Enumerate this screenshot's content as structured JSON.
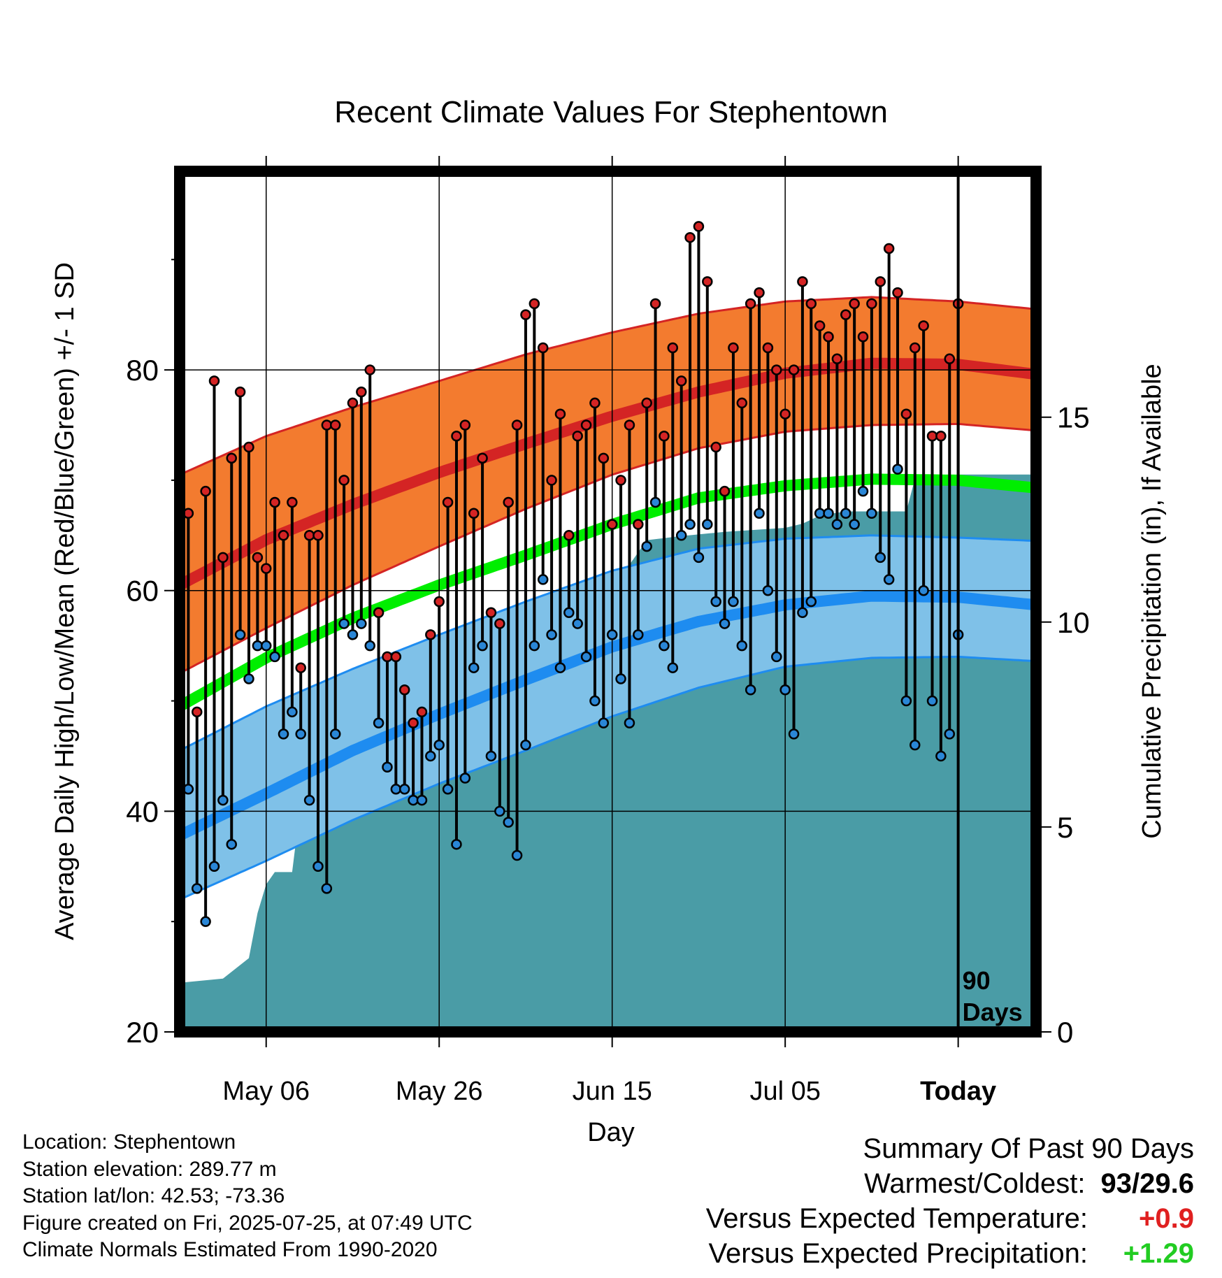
{
  "chart_data": {
    "type": "line",
    "title": "Recent Climate Values For Stephentown",
    "xlabel": "Day",
    "ylabel": "Average Daily High/Low/Mean (Red/Blue/Green) +/- 1 SD",
    "y2label": "Cumulative Precipitation (in), If Available",
    "ylim": [
      20,
      98
    ],
    "y2lim": [
      0,
      21
    ],
    "x_range_days": [
      -90,
      9
    ],
    "y_ticks": [
      "20",
      "40",
      "60",
      "80"
    ],
    "y2_ticks": [
      "0",
      "5",
      "10",
      "15"
    ],
    "x_ticks": [
      {
        "day": -80,
        "label": "May 06"
      },
      {
        "day": -60,
        "label": "May 26"
      },
      {
        "day": -40,
        "label": "Jun 15"
      },
      {
        "day": -20,
        "label": "Jul 05"
      },
      {
        "day": 0,
        "label": "Today"
      }
    ],
    "grid": true,
    "today_marker_label": "90 Days",
    "colors": {
      "high_band": "#f37b2f",
      "high_mean": "#d42424",
      "low_band": "#7fc1e8",
      "low_mean": "#1e8cf0",
      "mean": "#00ee00",
      "precip": "#4a9ca6",
      "high_dot": "#d42424",
      "low_dot": "#2a86d6"
    },
    "normals": {
      "day": [
        -90,
        -80,
        -70,
        -60,
        -50,
        -40,
        -30,
        -20,
        -10,
        0,
        9
      ],
      "high_mean": [
        60.5,
        64.6,
        67.8,
        70.7,
        73.3,
        75.8,
        78.0,
        79.7,
        80.6,
        80.5,
        79.6
      ],
      "high_sd_upper": [
        70.5,
        74.0,
        76.6,
        79.0,
        81.4,
        83.4,
        85.1,
        86.2,
        86.6,
        86.2,
        85.5
      ],
      "high_sd_lower": [
        52.5,
        56.6,
        60.5,
        64.0,
        67.4,
        70.5,
        72.9,
        74.4,
        75.0,
        75.1,
        74.5
      ],
      "mean": [
        49.5,
        53.9,
        57.5,
        60.5,
        63.2,
        66.0,
        68.4,
        69.5,
        70.1,
        70.0,
        69.3
      ],
      "low_mean": [
        37.8,
        41.6,
        45.5,
        48.8,
        51.9,
        54.9,
        57.2,
        58.7,
        59.5,
        59.4,
        58.7
      ],
      "low_sd_upper": [
        45.5,
        49.5,
        52.9,
        56.0,
        59.0,
        61.8,
        63.8,
        64.7,
        65.0,
        64.8,
        64.5
      ],
      "low_sd_lower": [
        32.0,
        35.5,
        39.2,
        42.5,
        45.5,
        48.6,
        51.2,
        53.1,
        53.9,
        54.0,
        53.6
      ]
    },
    "observed": {
      "day": [
        -89,
        -88,
        -87,
        -86,
        -85,
        -84,
        -83,
        -82,
        -81,
        -80,
        -79,
        -78,
        -77,
        -76,
        -75,
        -74,
        -73,
        -72,
        -71,
        -70,
        -69,
        -68,
        -67,
        -66,
        -65,
        -64,
        -63,
        -62,
        -61,
        -60,
        -59,
        -58,
        -57,
        -56,
        -55,
        -54,
        -53,
        -52,
        -51,
        -50,
        -49,
        -48,
        -47,
        -46,
        -45,
        -44,
        -43,
        -42,
        -41,
        -40,
        -39,
        -38,
        -37,
        -36,
        -35,
        -34,
        -33,
        -32,
        -31,
        -30,
        -29,
        -28,
        -27,
        -26,
        -25,
        -24,
        -23,
        -22,
        -21,
        -20,
        -19,
        -18,
        -17,
        -16,
        -15,
        -14,
        -13,
        -12,
        -11,
        -10,
        -9,
        -8,
        -7,
        -6,
        -5,
        -4,
        -3,
        -2,
        -1,
        0
      ],
      "high": [
        67,
        49,
        69,
        79,
        63,
        72,
        78,
        73,
        63,
        62,
        68,
        65,
        68,
        53,
        65,
        65,
        75,
        75,
        70,
        77,
        78,
        80,
        58,
        54,
        54,
        51,
        48,
        49,
        56,
        59,
        68,
        74,
        75,
        67,
        72,
        58,
        57,
        68,
        75,
        85,
        86,
        82,
        70,
        76,
        65,
        74,
        75,
        77,
        72,
        66,
        70,
        75,
        66,
        77,
        86,
        74,
        82,
        79,
        92,
        93,
        88,
        73,
        69,
        82,
        77,
        86,
        87,
        82,
        80,
        76,
        80,
        88,
        86,
        84,
        83,
        81,
        85,
        86,
        83,
        86,
        88,
        91,
        87,
        76,
        82,
        84,
        74,
        74,
        81,
        86
      ],
      "low": [
        42,
        33,
        30,
        35,
        41,
        37,
        56,
        52,
        55,
        55,
        54,
        47,
        49,
        47,
        41,
        35,
        33,
        47,
        57,
        56,
        57,
        55,
        48,
        44,
        42,
        42,
        41,
        41,
        45,
        46,
        42,
        37,
        43,
        53,
        55,
        45,
        40,
        39,
        36,
        46,
        55,
        61,
        56,
        53,
        58,
        57,
        54,
        50,
        48,
        56,
        52,
        48,
        56,
        64,
        68,
        55,
        53,
        65,
        66,
        63,
        66,
        59,
        57,
        59,
        55,
        51,
        67,
        60,
        54,
        51,
        47,
        58,
        59,
        67,
        67,
        66,
        67,
        66,
        69,
        67,
        63,
        61,
        71,
        50,
        46,
        60,
        50,
        45,
        47,
        56
      ]
    },
    "precipitation": {
      "day": [
        -90,
        -85,
        -82,
        -81,
        -80,
        -79,
        -77,
        -76,
        -75,
        -74,
        -70,
        -67,
        -65,
        -64,
        -63,
        -62,
        -60,
        -57,
        -56,
        -55,
        -53,
        -52,
        -51,
        -50,
        -48,
        -46,
        -43,
        -40,
        -38,
        -36,
        -32,
        -27,
        -20,
        -18,
        -16,
        -13,
        -6,
        -5,
        -4,
        0,
        9
      ],
      "value": [
        1.2,
        1.3,
        1.8,
        2.9,
        3.6,
        3.9,
        3.9,
        5.6,
        5.7,
        5.7,
        5.8,
        6.1,
        6.1,
        6.5,
        6.8,
        7.0,
        7.0,
        7.0,
        7.2,
        7.9,
        9.6,
        9.6,
        9.6,
        9.9,
        10.4,
        10.6,
        10.9,
        11.1,
        11.4,
        12.0,
        12.1,
        12.2,
        12.3,
        12.4,
        12.6,
        12.7,
        12.7,
        13.5,
        13.5,
        13.6,
        13.6
      ]
    }
  },
  "info": {
    "location": "Location: Stephentown",
    "elevation": "Station elevation: 289.77 m",
    "latlon": "Station lat/lon: 42.53; -73.36",
    "created": "Figure created on Fri, 2025-07-25, at 07:49 UTC",
    "normals": "Climate Normals Estimated From 1990-2020"
  },
  "summary": {
    "heading": "Summary Of Past 90 Days",
    "warm_cold_label": "Warmest/Coldest:",
    "warm_cold_value": "93/29.6",
    "temp_label": "Versus Expected Temperature:",
    "temp_value": "+0.9",
    "temp_color": "#e02020",
    "precip_label": "Versus Expected Precipitation:",
    "precip_value": "+1.29",
    "precip_color": "#22cc22"
  }
}
